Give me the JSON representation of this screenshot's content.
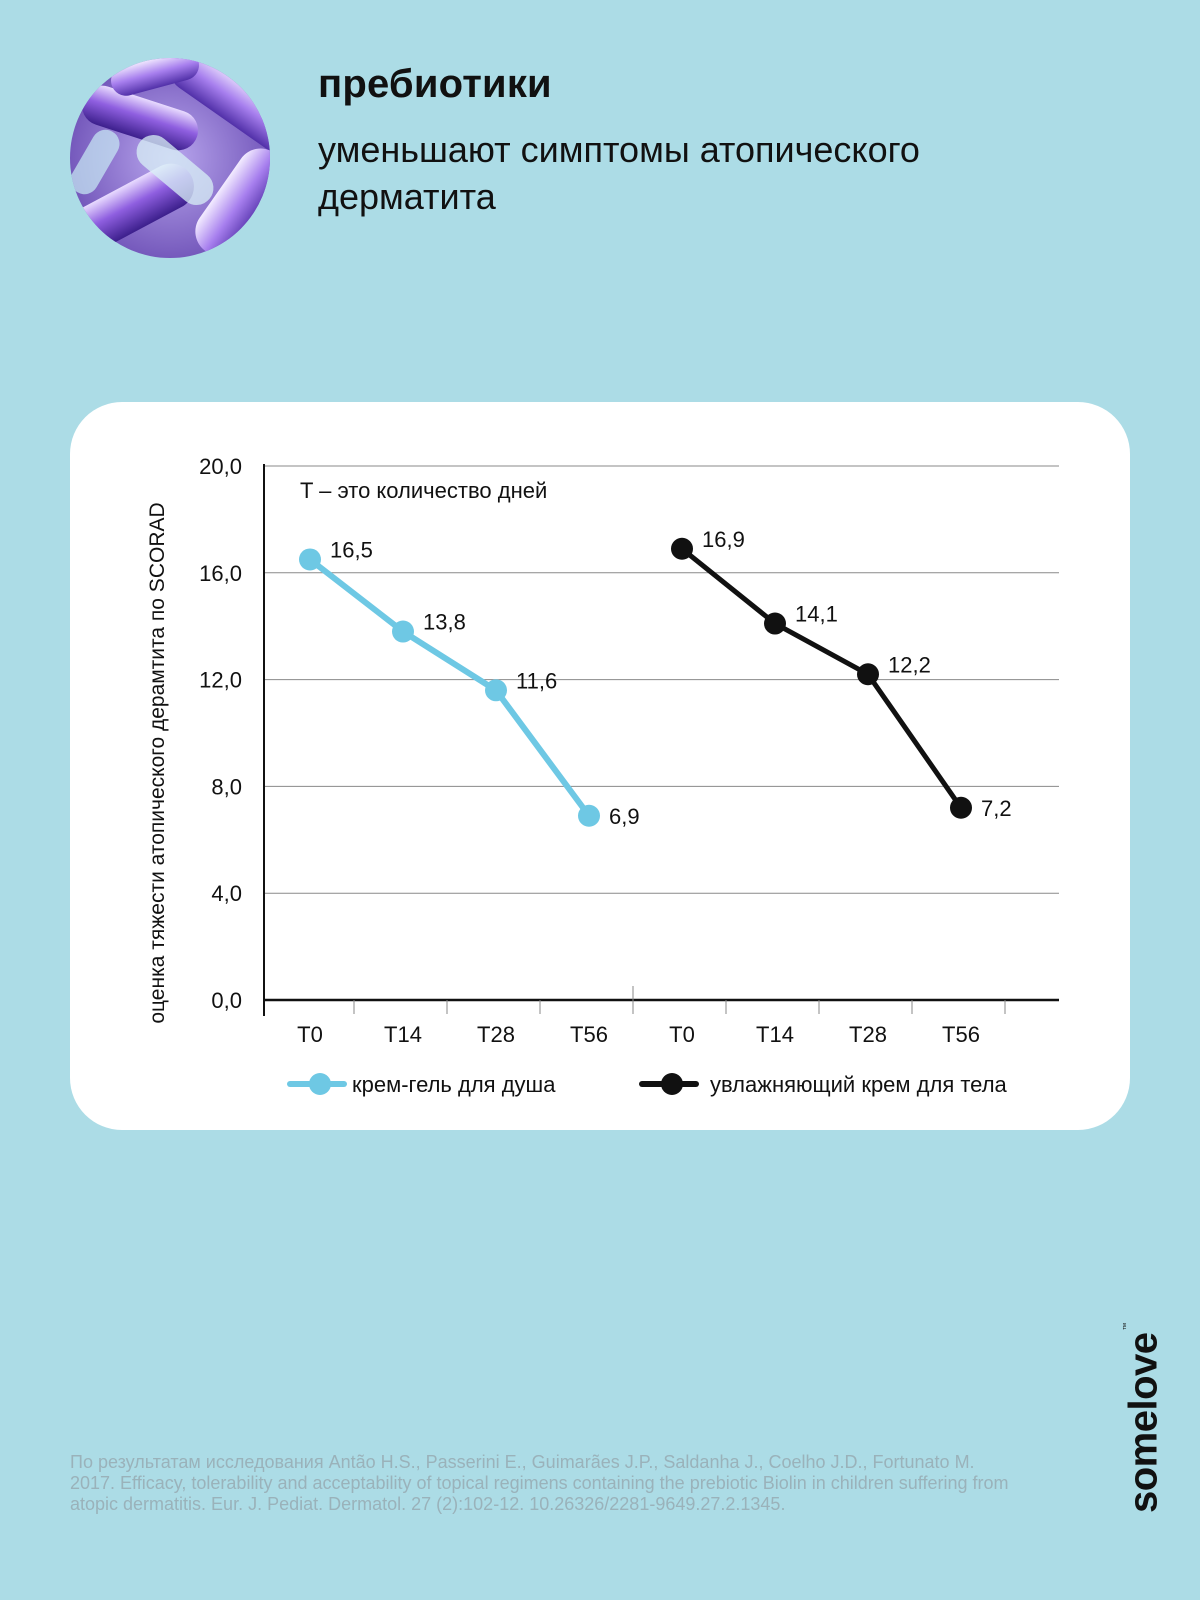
{
  "header": {
    "title": "пребиотики",
    "subtitle": "уменьшают симптомы атопического дерматита"
  },
  "chart_data": {
    "type": "line",
    "ylabel": "оценка тяжести атопического дерамтита по SCORAD",
    "annotation": "T – это количество дней",
    "ylim": [
      0,
      20
    ],
    "yticks": [
      "0,0",
      "4,0",
      "8,0",
      "12,0",
      "16,0",
      "20,0"
    ],
    "ytick_values": [
      0,
      4,
      8,
      12,
      16,
      20
    ],
    "grid": true,
    "categories": [
      "T0",
      "T14",
      "T28",
      "T56",
      "T0",
      "T14",
      "T28",
      "T56"
    ],
    "series": [
      {
        "name": "крем-гель для душа",
        "color": "#6ec8e4",
        "x": [
          "T0",
          "T14",
          "T28",
          "T56"
        ],
        "values": [
          16.5,
          13.8,
          11.6,
          6.9
        ],
        "labels": [
          "16,5",
          "13,8",
          "11,6",
          "6,9"
        ]
      },
      {
        "name": "увлажняющий крем для тела",
        "color": "#111111",
        "x": [
          "T0",
          "T14",
          "T28",
          "T56"
        ],
        "values": [
          16.9,
          14.1,
          12.2,
          7.2
        ],
        "labels": [
          "16,9",
          "14,1",
          "12,2",
          "7,2"
        ]
      }
    ],
    "legend_position": "bottom"
  },
  "footer": {
    "source": "По результатам исследования Antão H.S., Passerini E., Guimarães J.P., Saldanha J., Coelho J.D., Fortunato M. 2017. Efficacy, tolerability and acceptability of topical regimens containing the prebiotic Biolin in children suffering from atopic dermatitis. Eur. J. Pediat. Dermatol. 27 (2):102-12. 10.26326/2281-9649.27.2.1345.",
    "brand": "somelove",
    "trademark": "™"
  },
  "colors": {
    "background": "#acdce6",
    "card": "#ffffff",
    "series_light": "#6ec8e4",
    "series_dark": "#111111"
  }
}
